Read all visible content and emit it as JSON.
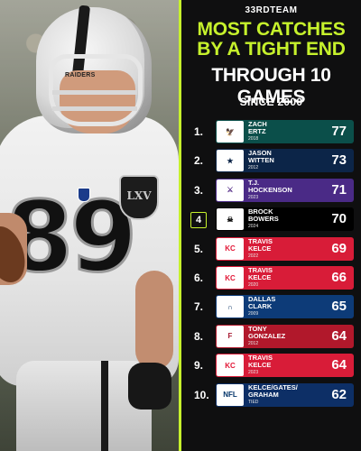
{
  "brand": "33RDTEAM",
  "title_line1": "MOST CATCHES",
  "title_line2": "BY A TIGHT END",
  "title_line3": "THROUGH 10 GAMES",
  "subtitle": "SINCE 2000",
  "photo": {
    "jersey_number": "89",
    "helmet_text": "RAIDERS",
    "shield_text": "LXV"
  },
  "colors": {
    "accent": "#c6f12c",
    "eagles": "#004c54",
    "cowboys": "#041e42",
    "vikings": "#4f2683",
    "raiders": "#000000",
    "chiefs": "#e31837",
    "colts": "#002c5f",
    "falcons": "#a71930",
    "nfl": "#013369"
  },
  "rankings": [
    {
      "rank": "1.",
      "name_line1": "ZACH",
      "name_line2": "ERTZ",
      "year": "2018",
      "catches": "77",
      "team_icon": "eagles-logo-icon",
      "row_color": "#0b4f4a"
    },
    {
      "rank": "2.",
      "name_line1": "JASON",
      "name_line2": "WITTEN",
      "year": "2012",
      "catches": "73",
      "team_icon": "cowboys-logo-icon",
      "row_color": "#0c2548"
    },
    {
      "rank": "3.",
      "name_line1": "T.J.",
      "name_line2": "HOCKENSON",
      "year": "2023",
      "catches": "71",
      "team_icon": "vikings-logo-icon",
      "row_color": "#4a2a86"
    },
    {
      "rank": "4.",
      "name_line1": "BROCK",
      "name_line2": "BOWERS",
      "year": "2024",
      "catches": "70",
      "team_icon": "raiders-logo-icon",
      "row_color": "#000000"
    },
    {
      "rank": "5.",
      "name_line1": "TRAVIS",
      "name_line2": "KELCE",
      "year": "2022",
      "catches": "69",
      "team_icon": "chiefs-logo-icon",
      "row_color": "#d81c38"
    },
    {
      "rank": "6.",
      "name_line1": "TRAVIS",
      "name_line2": "KELCE",
      "year": "2020",
      "catches": "66",
      "team_icon": "chiefs-logo-icon",
      "row_color": "#d81c38"
    },
    {
      "rank": "7.",
      "name_line1": "DALLAS",
      "name_line2": "CLARK",
      "year": "2009",
      "catches": "65",
      "team_icon": "colts-logo-icon",
      "row_color": "#0d3b78"
    },
    {
      "rank": "8.",
      "name_line1": "TONY",
      "name_line2": "GONZALEZ",
      "year": "2012",
      "catches": "64",
      "team_icon": "falcons-logo-icon",
      "row_color": "#b1182b"
    },
    {
      "rank": "9.",
      "name_line1": "TRAVIS",
      "name_line2": "KELCE",
      "year": "2023",
      "catches": "64",
      "team_icon": "chiefs-logo-icon",
      "row_color": "#d81c38"
    },
    {
      "rank": "10.",
      "name_line1": "KELCE/GATES/",
      "name_line2": "GRAHAM",
      "year": "TIED",
      "catches": "62",
      "team_icon": "nfl-logo-icon",
      "row_color": "#0d2f66"
    }
  ]
}
